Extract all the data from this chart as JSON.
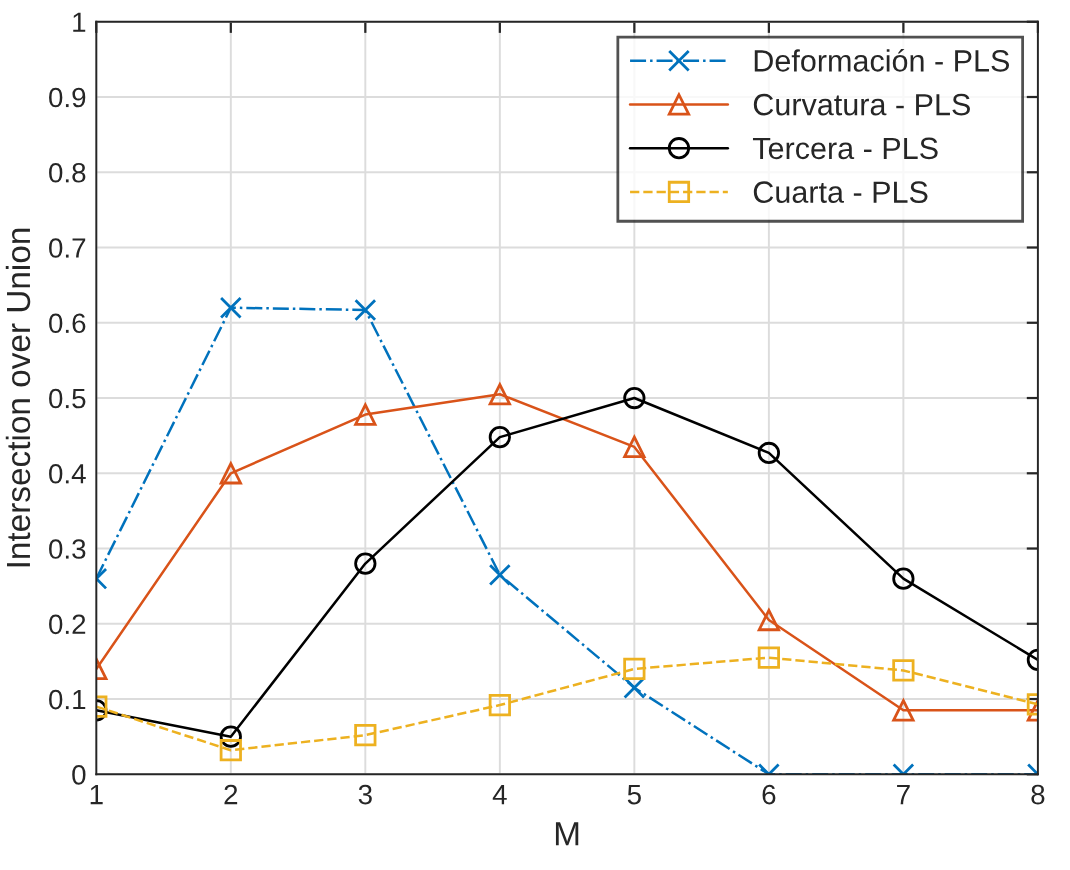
{
  "chart_data": {
    "type": "line",
    "xlabel": "M",
    "ylabel": "Intersection over Union",
    "x": [
      1,
      2,
      3,
      4,
      5,
      6,
      7,
      8
    ],
    "series": [
      {
        "name": "Deformación - PLS",
        "color": "#0072bd",
        "marker": "cross",
        "line_style": "dashdot",
        "values": [
          0.26,
          0.62,
          0.617,
          0.265,
          0.115,
          0.0,
          0.0,
          0.0
        ]
      },
      {
        "name": "Curvatura - PLS",
        "color": "#d95319",
        "marker": "triangle",
        "line_style": "solid",
        "values": [
          0.14,
          0.4,
          0.478,
          0.505,
          0.435,
          0.205,
          0.085,
          0.085
        ]
      },
      {
        "name": "Tercera - PLS",
        "color": "#000000",
        "marker": "circle",
        "line_style": "solid",
        "values": [
          0.085,
          0.05,
          0.28,
          0.448,
          0.5,
          0.427,
          0.26,
          0.152
        ]
      },
      {
        "name": "Cuarta - PLS",
        "color": "#edb120",
        "marker": "square",
        "line_style": "dashed",
        "values": [
          0.09,
          0.032,
          0.052,
          0.092,
          0.14,
          0.155,
          0.138,
          0.093
        ]
      }
    ],
    "xlim": [
      1,
      8
    ],
    "ylim": [
      0,
      1
    ],
    "xticks": [
      1,
      2,
      3,
      4,
      5,
      6,
      7,
      8
    ],
    "yticks": [
      0,
      0.1,
      0.2,
      0.3,
      0.4,
      0.5,
      0.6,
      0.7,
      0.8,
      0.9,
      1
    ],
    "grid": true,
    "legend": "top right"
  }
}
